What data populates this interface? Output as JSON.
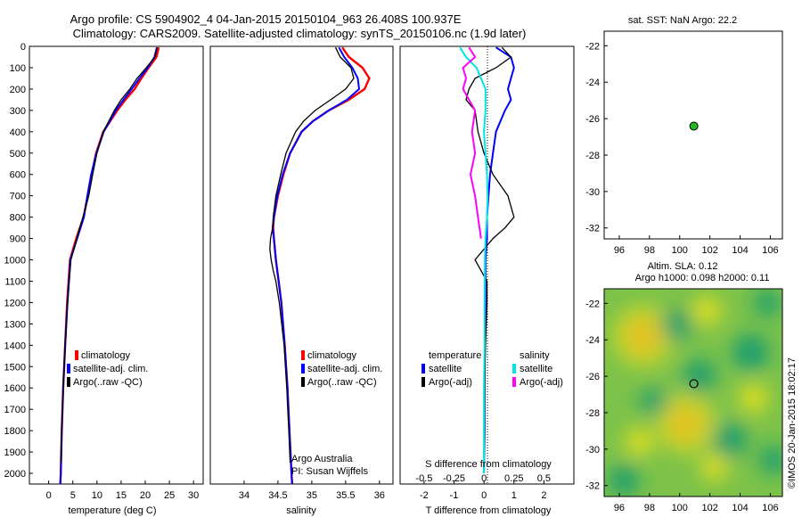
{
  "header": {
    "line1": "Argo profile: CS 5904902_4 04-Jan-2015 20150104_963 26.408S 100.937E",
    "line2": "Climatology: CARS2009. Satellite-adjusted climatology: synTS_20150106.nc (1.9d later)"
  },
  "colors": {
    "climatology": "#ff0000",
    "satellite_clim": "#0000ff",
    "argo": "#000000",
    "sat_salinity": "#00e5e5",
    "argo_adj_salinity": "#ff00ff",
    "argo_marker": "#22bb22",
    "map_low": "#1e9e6e",
    "map_mid": "#dddd22",
    "map_high": "#e8862a"
  },
  "chart_data": [
    {
      "type": "line",
      "panel": "temperature",
      "xlabel": "temperature (deg C)",
      "xlim": [
        -4,
        32
      ],
      "ylim": [
        2050,
        0
      ],
      "xticks": [
        "0",
        "5",
        "10",
        "15",
        "20",
        "25",
        "30"
      ],
      "yticks": [
        "0",
        "100",
        "200",
        "300",
        "400",
        "500",
        "600",
        "700",
        "800",
        "900",
        "1000",
        "1100",
        "1200",
        "1300",
        "1400",
        "1500",
        "1600",
        "1700",
        "1800",
        "1900",
        "2000"
      ],
      "legend": [
        "climatology",
        "satellite-adj. clim.",
        "Argo(..raw -QC)"
      ],
      "series": [
        {
          "name": "climatology",
          "depth": [
            5,
            50,
            100,
            150,
            200,
            250,
            300,
            400,
            500,
            600,
            700,
            800,
            900,
            1000,
            1200,
            1400,
            1600,
            1800,
            2000,
            2050
          ],
          "values": [
            22.8,
            22.3,
            20.7,
            19.2,
            17.8,
            15.9,
            14.2,
            11.3,
            9.8,
            8.9,
            8.1,
            7.2,
            5.7,
            4.4,
            3.8,
            3.4,
            3.0,
            2.7,
            2.5,
            2.4
          ]
        },
        {
          "name": "satellite-adj. clim.",
          "depth": [
            5,
            50,
            100,
            150,
            200,
            250,
            300,
            400,
            500,
            600,
            700,
            800,
            900,
            1000,
            1200,
            1400,
            1600,
            1800,
            2000,
            2050
          ],
          "values": [
            22.4,
            21.9,
            20.5,
            18.8,
            17.2,
            15.5,
            13.9,
            11.4,
            9.9,
            8.8,
            8.0,
            7.3,
            5.9,
            4.5,
            3.9,
            3.4,
            3.0,
            2.7,
            2.5,
            2.4
          ]
        },
        {
          "name": "Argo(..raw -QC)",
          "depth": [
            5,
            50,
            100,
            150,
            200,
            250,
            300,
            400,
            500,
            600,
            700,
            800,
            900,
            1000,
            1200,
            1400,
            1600,
            1800,
            1950
          ],
          "values": [
            22.5,
            22.0,
            20.2,
            18.3,
            16.8,
            15.0,
            13.6,
            11.3,
            10.0,
            9.1,
            8.3,
            7.1,
            5.8,
            4.6,
            3.9,
            3.4,
            3.0,
            2.7,
            2.5
          ]
        }
      ]
    },
    {
      "type": "line",
      "panel": "salinity",
      "xlabel": "salinity",
      "xlim": [
        33.5,
        36.2
      ],
      "ylim": [
        2050,
        0
      ],
      "xticks": [
        "34",
        "34.5",
        "35",
        "35.5",
        "36"
      ],
      "legend": [
        "climatology",
        "satellite-adj. clim.",
        "Argo(..raw -QC)"
      ],
      "note_lines": [
        "Argo Australia",
        "PI: Susan Wijffels"
      ],
      "series": [
        {
          "name": "climatology",
          "depth": [
            5,
            50,
            100,
            150,
            200,
            250,
            300,
            350,
            400,
            500,
            600,
            700,
            800,
            850,
            900,
            1000,
            1100,
            1200,
            1400,
            1600,
            1800,
            2000,
            2050
          ],
          "values": [
            35.45,
            35.55,
            35.75,
            35.85,
            35.78,
            35.55,
            35.25,
            35.02,
            34.85,
            34.68,
            34.58,
            34.5,
            34.44,
            34.43,
            34.44,
            34.47,
            34.51,
            34.55,
            34.6,
            34.64,
            34.67,
            34.7,
            34.71
          ]
        },
        {
          "name": "satellite-adj. clim.",
          "depth": [
            5,
            50,
            100,
            150,
            200,
            250,
            300,
            350,
            400,
            500,
            600,
            700,
            800,
            850,
            900,
            1000,
            1100,
            1200,
            1400,
            1600,
            1800,
            2000,
            2050
          ],
          "values": [
            35.4,
            35.48,
            35.6,
            35.68,
            35.7,
            35.52,
            35.25,
            35.02,
            34.85,
            34.68,
            34.57,
            34.49,
            34.44,
            34.42,
            34.44,
            34.47,
            34.51,
            34.55,
            34.6,
            34.64,
            34.67,
            34.7,
            34.71
          ]
        },
        {
          "name": "Argo(..raw -QC)",
          "depth": [
            5,
            50,
            100,
            150,
            200,
            250,
            300,
            350,
            400,
            500,
            600,
            700,
            800,
            850,
            900,
            950,
            1000,
            1050,
            1100,
            1200,
            1400,
            1600,
            1800,
            1950
          ],
          "values": [
            35.35,
            35.42,
            35.58,
            35.62,
            35.5,
            35.28,
            35.05,
            34.88,
            34.76,
            34.62,
            34.54,
            34.47,
            34.43,
            34.42,
            34.39,
            34.38,
            34.4,
            34.43,
            34.47,
            34.52,
            34.59,
            34.63,
            34.66,
            34.68
          ]
        }
      ]
    },
    {
      "type": "line",
      "panel": "differences",
      "xlabel_top": "S difference from climatology",
      "xlabel": "T difference from climatology",
      "xlim": [
        -2.8,
        3.0
      ],
      "ylim": [
        2050,
        0
      ],
      "xticks_s": [
        "-0.5",
        "-0.25",
        "0",
        "0.25",
        "0.5"
      ],
      "xticks_t": [
        "-2",
        "-1",
        "0",
        "1",
        "2"
      ],
      "legend_titles": [
        "temperature",
        "salinity"
      ],
      "legend": [
        "satellite",
        "Argo(-adj)",
        "satellite",
        "Argo(-adj)"
      ],
      "series": [
        {
          "name": "temperature satellite",
          "depth": [
            5,
            50,
            100,
            150,
            200,
            250,
            300,
            400,
            500,
            600,
            700,
            800,
            900,
            1000,
            1200,
            1400,
            1600,
            1800,
            2000
          ],
          "values": [
            0.4,
            0.9,
            1.0,
            0.9,
            0.8,
            0.9,
            0.7,
            0.4,
            0.3,
            0.2,
            0.15,
            0.1,
            0.1,
            0.05,
            0.05,
            0.03,
            0.02,
            0.02,
            0.0
          ]
        },
        {
          "name": "temperature Argo(-adj)",
          "depth": [
            5,
            50,
            100,
            150,
            200,
            250,
            300,
            400,
            500,
            600,
            700,
            800,
            850,
            900,
            1000,
            1100,
            1200,
            1400,
            1600,
            1800,
            1950
          ],
          "values": [
            0.6,
            0.9,
            0.4,
            -0.3,
            -0.5,
            -0.6,
            -0.3,
            -0.2,
            0.0,
            0.3,
            0.8,
            1.0,
            0.7,
            0.3,
            -0.3,
            0.1,
            0.1,
            0.05,
            0.02,
            0.0,
            0.0
          ]
        },
        {
          "name": "salinity satellite",
          "depth": [
            5,
            50,
            100,
            150,
            200,
            250,
            300,
            400,
            500,
            600,
            700,
            800,
            900,
            1000,
            1200,
            1400,
            1600,
            1800,
            2000
          ],
          "values": [
            -0.8,
            -0.6,
            -0.25,
            -0.1,
            0.05,
            0.05,
            0.05,
            0.0,
            0.05,
            0.1,
            0.12,
            0.1,
            0.05,
            0.03,
            0.02,
            0.02,
            0.0,
            0.0,
            0.0
          ]
        },
        {
          "name": "salinity Argo(-adj)",
          "depth": [
            5,
            50,
            100,
            150,
            200,
            250,
            300,
            400,
            500,
            600,
            700,
            800,
            900
          ],
          "values": [
            -0.5,
            -0.3,
            -0.7,
            -0.6,
            -0.7,
            -0.5,
            -0.3,
            -0.4,
            -0.3,
            -0.45,
            -0.3,
            -0.2,
            -0.1
          ]
        }
      ]
    },
    {
      "type": "scatter",
      "panel": "location",
      "title": "sat. SST: NaN Argo: 22.2",
      "xlim": [
        95,
        106.8
      ],
      "ylim": [
        -32.6,
        -21.2
      ],
      "xticks": [
        "96",
        "98",
        "100",
        "102",
        "104",
        "106"
      ],
      "yticks": [
        "-22",
        "-24",
        "-26",
        "-28",
        "-30",
        "-32"
      ],
      "points": [
        {
          "x": 100.937,
          "y": -26.408
        }
      ]
    },
    {
      "type": "heatmap",
      "panel": "altimetry",
      "title_lines": [
        "Altim. SLA: 0.12",
        "Argo h1000: 0.098 h2000: 0.11"
      ],
      "xlim": [
        95,
        106.8
      ],
      "ylim": [
        -32.6,
        -21.2
      ],
      "xticks": [
        "96",
        "98",
        "100",
        "102",
        "104",
        "106"
      ],
      "yticks": [
        "-22",
        "-24",
        "-26",
        "-28",
        "-30",
        "-32"
      ],
      "marker": {
        "x": 100.937,
        "y": -26.408
      },
      "blobs": [
        {
          "x": 97.6,
          "y": -23.8,
          "level": 1.0
        },
        {
          "x": 100.4,
          "y": -28.6,
          "level": 0.95
        },
        {
          "x": 101.8,
          "y": -22.4,
          "level": 0.55
        },
        {
          "x": 104.9,
          "y": -27.2,
          "level": 0.55
        },
        {
          "x": 97.3,
          "y": -29.6,
          "level": 0.5
        },
        {
          "x": 102.3,
          "y": -31.0,
          "level": 0.45
        },
        {
          "x": 104.7,
          "y": -24.7,
          "level": -0.9
        },
        {
          "x": 101.3,
          "y": -26.0,
          "level": -0.7
        },
        {
          "x": 103.3,
          "y": -29.5,
          "level": -0.8
        },
        {
          "x": 98.3,
          "y": -27.4,
          "level": -0.45
        },
        {
          "x": 99.8,
          "y": -23.2,
          "level": -0.6
        },
        {
          "x": 96.3,
          "y": -31.7,
          "level": -0.6
        },
        {
          "x": 106.2,
          "y": -30.6,
          "level": -0.5
        },
        {
          "x": 105.8,
          "y": -22.0,
          "level": -0.4
        }
      ]
    }
  ],
  "credit": "©IMOS 20-Jan-2015 18:02:17"
}
